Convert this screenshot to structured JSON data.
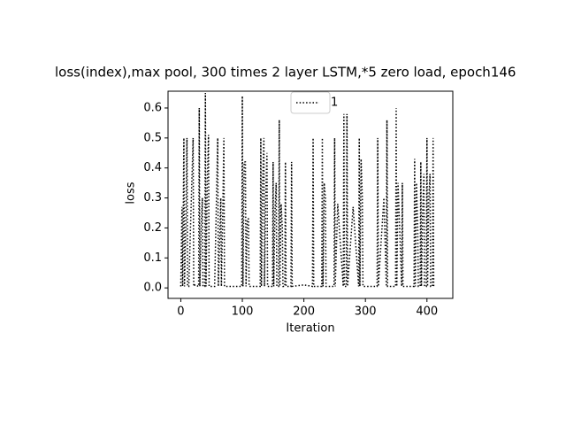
{
  "chart_data": {
    "type": "line",
    "title": "loss(index),max pool, 300 times 2 layer LSTM,*5 zero load, epoch146",
    "xlabel": "Iteration",
    "ylabel": "loss",
    "x": [
      0,
      2,
      3,
      5,
      6,
      8,
      10,
      11,
      13,
      20,
      21,
      23,
      29,
      30,
      31,
      33,
      35,
      36,
      39,
      40,
      41,
      43,
      45,
      46,
      55,
      60,
      61,
      63,
      65,
      66,
      68,
      70,
      71,
      80,
      99,
      100,
      101,
      103,
      105,
      106,
      108,
      110,
      111,
      120,
      129,
      130,
      131,
      133,
      135,
      136,
      138,
      140,
      141,
      149,
      150,
      151,
      153,
      155,
      156,
      159,
      160,
      161,
      163,
      165,
      166,
      169,
      170,
      171,
      179,
      180,
      181,
      200,
      214,
      215,
      216,
      229,
      230,
      231,
      233,
      235,
      236,
      249,
      250,
      251,
      255,
      264,
      265,
      266,
      269,
      270,
      271,
      280,
      289,
      290,
      291,
      293,
      295,
      296,
      310,
      319,
      320,
      321,
      330,
      334,
      335,
      336,
      349,
      350,
      351,
      353,
      359,
      360,
      361,
      370,
      379,
      380,
      381,
      383,
      385,
      386,
      389,
      390,
      391,
      393,
      395,
      396,
      399,
      400,
      401,
      403,
      405,
      406,
      409,
      410,
      411,
      413
    ],
    "series": [
      {
        "name": "1",
        "color": "#000000",
        "values": [
          0.005,
          0.27,
          0.005,
          0.5,
          0.005,
          0.2,
          0.5,
          0.005,
          0.005,
          0.5,
          0.005,
          0.01,
          0.005,
          0.6,
          0.005,
          0.2,
          0.3,
          0.005,
          0.005,
          0.65,
          0.005,
          0.35,
          0.51,
          0.005,
          0.005,
          0.5,
          0.005,
          0.15,
          0.3,
          0.005,
          0.23,
          0.5,
          0.005,
          0.005,
          0.005,
          0.64,
          0.005,
          0.42,
          0.42,
          0.005,
          0.23,
          0.23,
          0.005,
          0.005,
          0.005,
          0.5,
          0.005,
          0.35,
          0.5,
          0.005,
          0.3,
          0.45,
          0.005,
          0.005,
          0.42,
          0.005,
          0.25,
          0.35,
          0.005,
          0.005,
          0.56,
          0.005,
          0.28,
          0.2,
          0.005,
          0.005,
          0.42,
          0.005,
          0.005,
          0.42,
          0.005,
          0.01,
          0.005,
          0.5,
          0.005,
          0.005,
          0.5,
          0.005,
          0.35,
          0.3,
          0.005,
          0.005,
          0.5,
          0.005,
          0.28,
          0.005,
          0.58,
          0.005,
          0.005,
          0.58,
          0.005,
          0.27,
          0.005,
          0.5,
          0.005,
          0.43,
          0.3,
          0.005,
          0.005,
          0.005,
          0.5,
          0.005,
          0.3,
          0.005,
          0.56,
          0.005,
          0.005,
          0.6,
          0.005,
          0.35,
          0.005,
          0.35,
          0.005,
          0.005,
          0.005,
          0.43,
          0.005,
          0.35,
          0.2,
          0.005,
          0.005,
          0.42,
          0.005,
          0.25,
          0.38,
          0.005,
          0.005,
          0.5,
          0.005,
          0.3,
          0.38,
          0.005,
          0.005,
          0.5,
          0.005,
          0.005
        ]
      }
    ],
    "xlim": [
      -20.75,
      442
    ],
    "ylim": [
      -0.035,
      0.656
    ],
    "xticks": [
      0,
      100,
      200,
      300,
      400
    ],
    "yticks": [
      {
        "value": 0,
        "label": "0.0"
      },
      0.1,
      0.2,
      0.3,
      0.4,
      0.5,
      0.6
    ],
    "legend": "upper center"
  }
}
